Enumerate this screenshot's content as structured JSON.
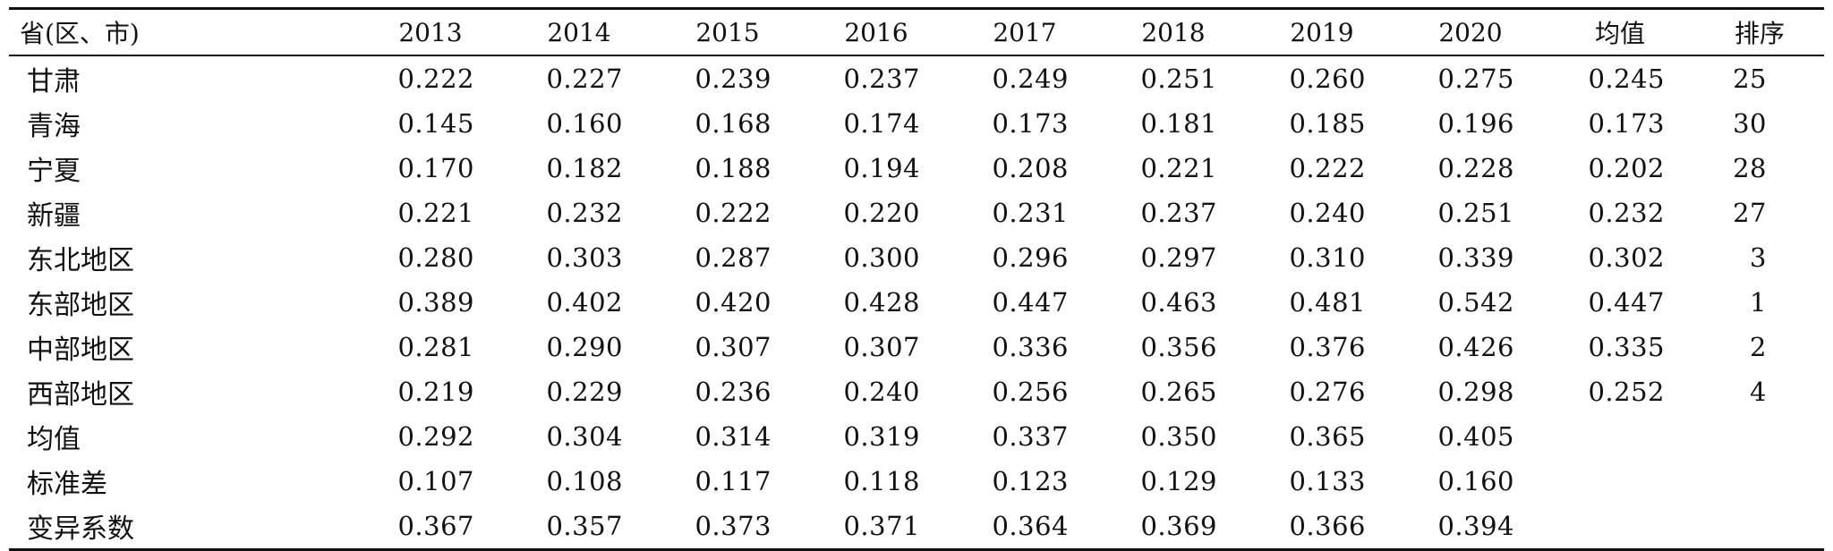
{
  "table": {
    "headers": [
      "省(区、市)",
      "2013",
      "2014",
      "2015",
      "2016",
      "2017",
      "2018",
      "2019",
      "2020",
      "均值",
      "排序"
    ],
    "rows": [
      {
        "name": "甘肃",
        "values": [
          "0.222",
          "0.227",
          "0.239",
          "0.237",
          "0.249",
          "0.251",
          "0.260",
          "0.275"
        ],
        "mean": "0.245",
        "rank": "25"
      },
      {
        "name": "青海",
        "values": [
          "0.145",
          "0.160",
          "0.168",
          "0.174",
          "0.173",
          "0.181",
          "0.185",
          "0.196"
        ],
        "mean": "0.173",
        "rank": "30"
      },
      {
        "name": "宁夏",
        "values": [
          "0.170",
          "0.182",
          "0.188",
          "0.194",
          "0.208",
          "0.221",
          "0.222",
          "0.228"
        ],
        "mean": "0.202",
        "rank": "28"
      },
      {
        "name": "新疆",
        "values": [
          "0.221",
          "0.232",
          "0.222",
          "0.220",
          "0.231",
          "0.237",
          "0.240",
          "0.251"
        ],
        "mean": "0.232",
        "rank": "27"
      },
      {
        "name": "东北地区",
        "values": [
          "0.280",
          "0.303",
          "0.287",
          "0.300",
          "0.296",
          "0.297",
          "0.310",
          "0.339"
        ],
        "mean": "0.302",
        "rank": "3"
      },
      {
        "name": "东部地区",
        "values": [
          "0.389",
          "0.402",
          "0.420",
          "0.428",
          "0.447",
          "0.463",
          "0.481",
          "0.542"
        ],
        "mean": "0.447",
        "rank": "1"
      },
      {
        "name": "中部地区",
        "values": [
          "0.281",
          "0.290",
          "0.307",
          "0.307",
          "0.336",
          "0.356",
          "0.376",
          "0.426"
        ],
        "mean": "0.335",
        "rank": "2"
      },
      {
        "name": "西部地区",
        "values": [
          "0.219",
          "0.229",
          "0.236",
          "0.240",
          "0.256",
          "0.265",
          "0.276",
          "0.298"
        ],
        "mean": "0.252",
        "rank": "4"
      },
      {
        "name": "均值",
        "values": [
          "0.292",
          "0.304",
          "0.314",
          "0.319",
          "0.337",
          "0.350",
          "0.365",
          "0.405"
        ],
        "mean": "",
        "rank": ""
      },
      {
        "name": "标准差",
        "values": [
          "0.107",
          "0.108",
          "0.117",
          "0.118",
          "0.123",
          "0.129",
          "0.133",
          "0.160"
        ],
        "mean": "",
        "rank": ""
      },
      {
        "name": "变异系数",
        "values": [
          "0.367",
          "0.357",
          "0.373",
          "0.371",
          "0.364",
          "0.369",
          "0.366",
          "0.394"
        ],
        "mean": "",
        "rank": ""
      }
    ]
  }
}
